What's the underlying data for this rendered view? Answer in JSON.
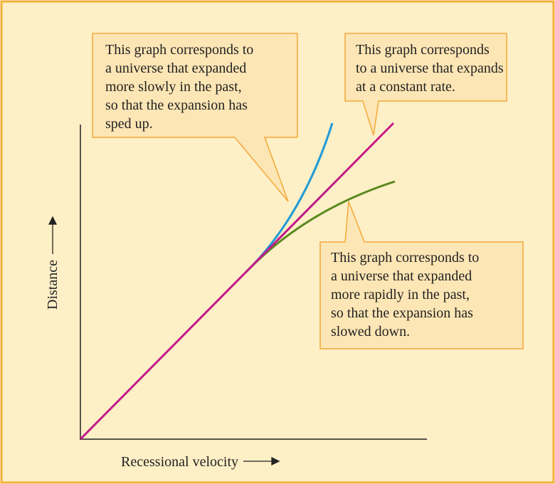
{
  "y_axis_label": "Distance",
  "x_axis_label": "Recessional velocity",
  "callouts": [
    {
      "lines": [
        "This graph corresponds to",
        "a universe that expanded",
        "more slowly in the past,",
        "so that the expansion has",
        "sped up."
      ]
    },
    {
      "lines": [
        "This graph corresponds",
        "to a universe that expands",
        "at a constant rate."
      ]
    },
    {
      "lines": [
        "This graph corresponds to",
        "a universe that expanded",
        "more rapidly in the past,",
        "so that the expansion has",
        "slowed down."
      ]
    }
  ]
}
